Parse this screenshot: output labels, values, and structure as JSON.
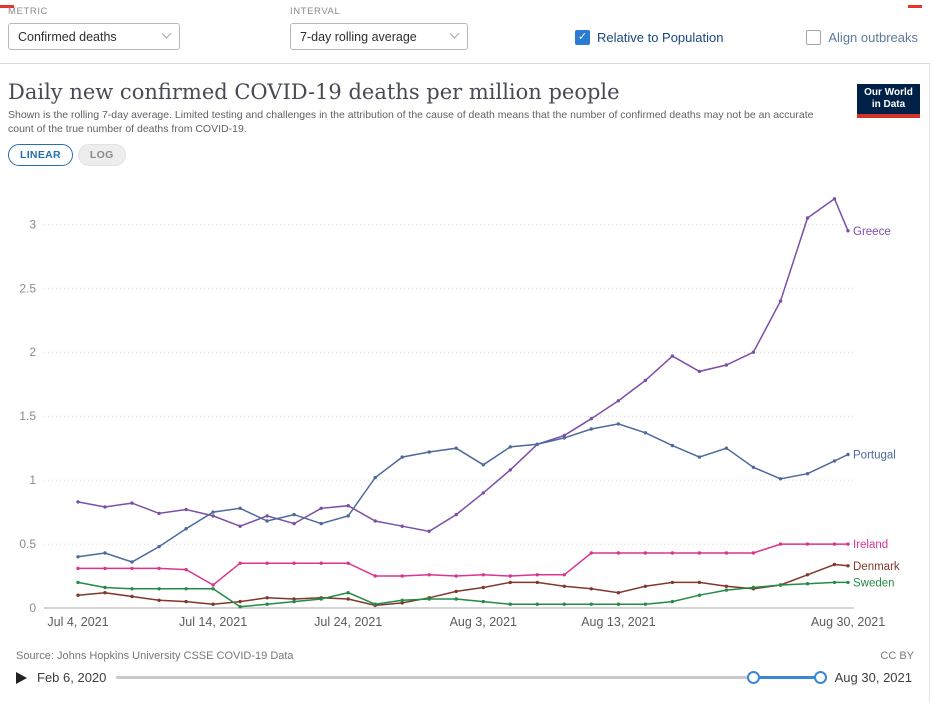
{
  "colors": {
    "accent_blue": "#2b7bd4",
    "checkbox_label_blue": "#19487e",
    "muted_label": "#5b7a99",
    "linear_button_blue": "#2470b3",
    "logo_navy": "#002147",
    "logo_red": "#d0342b",
    "slider_blue": "#3b87d4"
  },
  "controls": {
    "metric_label": "METRIC",
    "metric_value": "Confirmed deaths",
    "interval_label": "INTERVAL",
    "interval_value": "7-day rolling average",
    "relative_label": "Relative to Population",
    "align_label": "Align outbreaks"
  },
  "header": {
    "title": "Daily new confirmed COVID-19 deaths per million people",
    "subtitle": "Shown is the rolling 7-day average. Limited testing and challenges in the attribution of the cause of death means that the number of confirmed deaths may not be an accurate count of the true number of deaths from COVID-19.",
    "logo_line1": "Our World",
    "logo_line2": "in Data"
  },
  "toolbar": {
    "linear_label": "LINEAR",
    "log_label": "LOG"
  },
  "footer": {
    "source": "Source: Johns Hopkins University CSSE COVID-19 Data",
    "license": "CC BY"
  },
  "timeline": {
    "start_label": "Feb 6, 2020",
    "end_label": "Aug 30, 2021"
  },
  "chart_data": {
    "type": "line",
    "title": "Daily new confirmed COVID-19 deaths per million people",
    "xlabel": "",
    "ylabel": "",
    "grid": "dotted-horizontal",
    "legend_position": "right-end-labels",
    "ylim": [
      0,
      3.3
    ],
    "yticks": [
      0,
      0.5,
      1,
      1.5,
      2,
      2.5,
      3
    ],
    "x_unit": "days since Jul 4, 2021",
    "x_days": [
      0,
      2,
      4,
      6,
      8,
      10,
      12,
      14,
      16,
      18,
      20,
      22,
      24,
      26,
      28,
      30,
      32,
      34,
      36,
      38,
      40,
      42,
      44,
      46,
      48,
      50,
      52,
      54,
      56,
      57
    ],
    "x_tick_days": [
      0,
      10,
      20,
      30,
      40,
      57
    ],
    "x_tick_labels": [
      "Jul 4, 2021",
      "Jul 14, 2021",
      "Jul 24, 2021",
      "Aug 3, 2021",
      "Aug 13, 2021",
      "Aug 30, 2021"
    ],
    "series": [
      {
        "name": "Greece",
        "color": "#7b4fa6",
        "values": [
          0.83,
          0.79,
          0.82,
          0.74,
          0.77,
          0.72,
          0.64,
          0.72,
          0.66,
          0.78,
          0.8,
          0.68,
          0.64,
          0.6,
          0.73,
          0.9,
          1.08,
          1.28,
          1.35,
          1.48,
          1.62,
          1.78,
          1.97,
          1.85,
          1.9,
          2.0,
          2.4,
          3.05,
          3.2,
          2.95
        ]
      },
      {
        "name": "Portugal",
        "color": "#4c6a9c",
        "values": [
          0.4,
          0.43,
          0.36,
          0.48,
          0.62,
          0.75,
          0.78,
          0.68,
          0.73,
          0.66,
          0.72,
          1.02,
          1.18,
          1.22,
          1.25,
          1.12,
          1.26,
          1.28,
          1.33,
          1.4,
          1.44,
          1.37,
          1.27,
          1.18,
          1.25,
          1.1,
          1.01,
          1.05,
          1.15,
          1.2
        ]
      },
      {
        "name": "Ireland",
        "color": "#d9348e",
        "values": [
          0.31,
          0.31,
          0.31,
          0.31,
          0.3,
          0.18,
          0.35,
          0.35,
          0.35,
          0.35,
          0.35,
          0.25,
          0.25,
          0.26,
          0.25,
          0.26,
          0.25,
          0.26,
          0.26,
          0.43,
          0.43,
          0.43,
          0.43,
          0.43,
          0.43,
          0.43,
          0.5,
          0.5,
          0.5,
          0.5
        ]
      },
      {
        "name": "Denmark",
        "color": "#7f382b",
        "values": [
          0.1,
          0.12,
          0.09,
          0.06,
          0.05,
          0.03,
          0.05,
          0.08,
          0.07,
          0.08,
          0.07,
          0.02,
          0.04,
          0.08,
          0.13,
          0.16,
          0.2,
          0.2,
          0.17,
          0.15,
          0.12,
          0.17,
          0.2,
          0.2,
          0.17,
          0.15,
          0.18,
          0.26,
          0.34,
          0.33
        ]
      },
      {
        "name": "Sweden",
        "color": "#238b45",
        "values": [
          0.2,
          0.16,
          0.15,
          0.15,
          0.15,
          0.15,
          0.01,
          0.03,
          0.05,
          0.07,
          0.12,
          0.03,
          0.06,
          0.07,
          0.07,
          0.05,
          0.03,
          0.03,
          0.03,
          0.03,
          0.03,
          0.03,
          0.05,
          0.1,
          0.14,
          0.16,
          0.18,
          0.19,
          0.2,
          0.2
        ]
      }
    ]
  }
}
